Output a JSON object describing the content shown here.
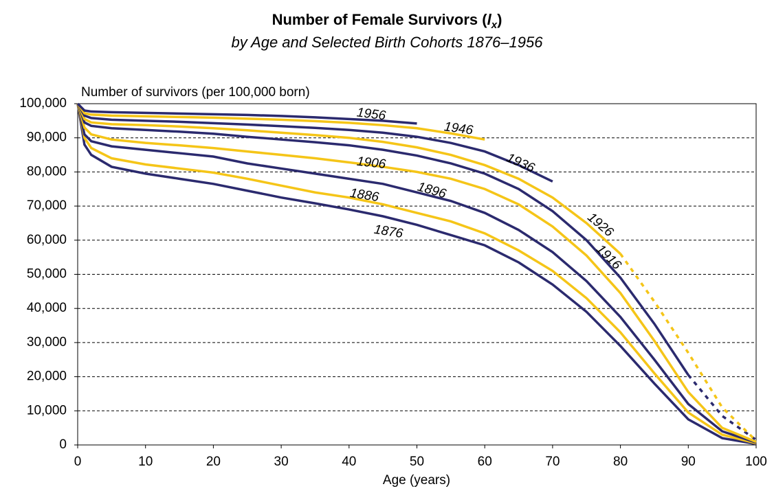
{
  "chart_data": {
    "type": "line",
    "title": {
      "text": "Number of Female Survivors (",
      "symbol": "l",
      "subscript": "x",
      "close": ")"
    },
    "subtitle": "by Age and Selected Birth Cohorts 1876–1956",
    "y_label": "Number of survivors (per 100,000 born)",
    "x_label": "Age (years)",
    "x": [
      0,
      1,
      2,
      5,
      10,
      15,
      20,
      25,
      30,
      35,
      40,
      45,
      50,
      55,
      60,
      65,
      70,
      75,
      80,
      85,
      90,
      95,
      100
    ],
    "xlim": [
      0,
      100
    ],
    "xticks": [
      0,
      10,
      20,
      30,
      40,
      50,
      60,
      70,
      80,
      90,
      100
    ],
    "ylim": [
      0,
      100000
    ],
    "yticks": [
      0,
      {
        "value": 10000,
        "label": "10,000"
      },
      {
        "value": 20000,
        "label": "20,000"
      },
      {
        "value": 30000,
        "label": "30,000"
      },
      {
        "value": 40000,
        "label": "40,000"
      },
      {
        "value": 50000,
        "label": "50,000"
      },
      {
        "value": 60000,
        "label": "60,000"
      },
      {
        "value": 70000,
        "label": "70,000"
      },
      {
        "value": 80000,
        "label": "80,000"
      },
      {
        "value": 90000,
        "label": "90,000"
      },
      {
        "value": 100000,
        "label": "100,000"
      }
    ],
    "grid": true,
    "series": [
      {
        "name": "1876",
        "color": "#2b2a6e",
        "values": [
          100000,
          88000,
          85000,
          81500,
          79500,
          78000,
          76500,
          74500,
          72500,
          70800,
          69000,
          67000,
          64500,
          61500,
          58500,
          53500,
          47000,
          39000,
          29000,
          18000,
          7500,
          2000,
          300
        ]
      },
      {
        "name": "1886",
        "color": "#f5c518",
        "values": [
          100000,
          90000,
          87000,
          84000,
          82200,
          81000,
          79800,
          78000,
          76000,
          74000,
          72500,
          70500,
          68000,
          65500,
          62000,
          57000,
          51000,
          43000,
          33000,
          21000,
          9500,
          3000,
          500
        ]
      },
      {
        "name": "1896",
        "color": "#2b2a6e",
        "values": [
          100000,
          91000,
          89000,
          87500,
          86500,
          85500,
          84500,
          82500,
          81000,
          79500,
          78000,
          76500,
          74000,
          71500,
          68000,
          63000,
          56500,
          48000,
          37500,
          25000,
          12000,
          4000,
          700
        ]
      },
      {
        "name": "1906",
        "color": "#f5c518",
        "values": [
          100000,
          93000,
          91000,
          89500,
          88500,
          87800,
          87000,
          86000,
          85000,
          84000,
          82800,
          81500,
          80000,
          78000,
          75000,
          70500,
          64000,
          55500,
          44500,
          30500,
          15500,
          5000,
          900
        ]
      },
      {
        "name": "1916",
        "color": "#2b2a6e",
        "values": [
          100000,
          94500,
          93500,
          92800,
          92300,
          91800,
          91200,
          90300,
          89500,
          88700,
          87800,
          86500,
          84800,
          82500,
          79500,
          75000,
          68500,
          60000,
          49000,
          35500,
          20500,
          null,
          null
        ],
        "projected_values": [
          null,
          null,
          null,
          null,
          null,
          null,
          null,
          null,
          null,
          null,
          null,
          null,
          null,
          null,
          null,
          null,
          null,
          null,
          null,
          null,
          20500,
          8500,
          1500
        ]
      },
      {
        "name": "1926",
        "color": "#f5c518",
        "values": [
          100000,
          95500,
          94500,
          94000,
          93700,
          93300,
          92800,
          92200,
          91500,
          90800,
          90000,
          88800,
          87200,
          85000,
          82000,
          78000,
          72500,
          65000,
          56000,
          null,
          null,
          null,
          null
        ],
        "projected_values": [
          null,
          null,
          null,
          null,
          null,
          null,
          null,
          null,
          null,
          null,
          null,
          null,
          null,
          null,
          null,
          null,
          null,
          null,
          56000,
          42000,
          27000,
          11000,
          1200
        ]
      },
      {
        "name": "1936",
        "color": "#2b2a6e",
        "values": [
          100000,
          96500,
          95800,
          95300,
          95000,
          94700,
          94300,
          93900,
          93400,
          92900,
          92300,
          91500,
          90300,
          88500,
          86000,
          82000,
          77200,
          null,
          null,
          null,
          null,
          null,
          null
        ]
      },
      {
        "name": "1946",
        "color": "#f5c518",
        "values": [
          100000,
          97200,
          96800,
          96500,
          96300,
          96100,
          95900,
          95600,
          95300,
          94900,
          94400,
          93700,
          92800,
          91300,
          89500,
          null,
          null,
          null,
          null,
          null,
          null,
          null,
          null
        ]
      },
      {
        "name": "1956",
        "color": "#2b2a6e",
        "values": [
          100000,
          98000,
          97700,
          97500,
          97300,
          97100,
          96900,
          96700,
          96400,
          96000,
          95500,
          95000,
          94200,
          null,
          null,
          null,
          null,
          null,
          null,
          null,
          null,
          null,
          null
        ]
      }
    ]
  }
}
